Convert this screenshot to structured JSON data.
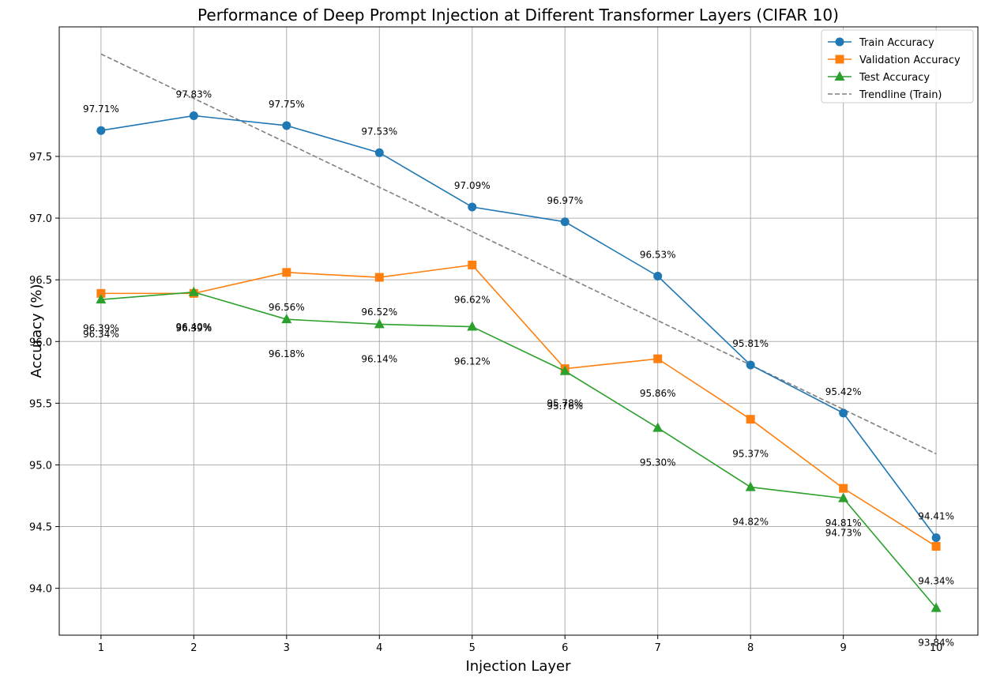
{
  "chart_data": {
    "type": "line",
    "title": "Performance of Deep Prompt Injection at Different Transformer Layers (CIFAR 10)",
    "xlabel": "Injection Layer",
    "ylabel": "Accuracy (%)",
    "x": [
      1,
      2,
      3,
      4,
      5,
      6,
      7,
      8,
      9,
      10
    ],
    "xlim": [
      0.55,
      10.45
    ],
    "ylim": [
      93.62,
      98.55
    ],
    "yticks": [
      94.0,
      94.5,
      95.0,
      95.5,
      96.0,
      96.5,
      97.0,
      97.5
    ],
    "ytick_labels": [
      "94.0",
      "94.5",
      "95.0",
      "95.5",
      "96.0",
      "96.5",
      "97.0",
      "97.5"
    ],
    "xtick_labels": [
      "1",
      "2",
      "3",
      "4",
      "5",
      "6",
      "7",
      "8",
      "9",
      "10"
    ],
    "grid": true,
    "legend_position": "top-right",
    "series": [
      {
        "name": "Train Accuracy",
        "color": "#1f77b4",
        "marker": "circle",
        "line_style": "solid",
        "values": [
          97.71,
          97.83,
          97.75,
          97.53,
          97.09,
          96.97,
          96.53,
          95.81,
          95.42,
          94.41
        ],
        "labels": [
          "97.71%",
          "97.83%",
          "97.75%",
          "97.53%",
          "97.09%",
          "96.97%",
          "96.53%",
          "95.81%",
          "95.42%",
          "94.41%"
        ]
      },
      {
        "name": "Validation Accuracy",
        "color": "#ff7f0e",
        "marker": "square",
        "line_style": "solid",
        "values": [
          96.39,
          96.39,
          96.56,
          96.52,
          96.62,
          95.78,
          95.86,
          95.37,
          94.81,
          94.34
        ],
        "labels": [
          "96.39%",
          "96.39%",
          "96.56%",
          "96.52%",
          "96.62%",
          "95.78%",
          "95.86%",
          "95.37%",
          "94.81%",
          "94.34%"
        ]
      },
      {
        "name": "Test Accuracy",
        "color": "#2ca02c",
        "marker": "triangle",
        "line_style": "solid",
        "values": [
          96.34,
          96.4,
          96.18,
          96.14,
          96.12,
          95.76,
          95.3,
          94.82,
          94.73,
          93.84
        ],
        "labels": [
          "96.34%",
          "96.40%",
          "96.18%",
          "96.14%",
          "96.12%",
          "95.76%",
          "95.30%",
          "94.82%",
          "94.73%",
          "93.84%"
        ]
      },
      {
        "name": "Trendline (Train)",
        "color": "#808080",
        "marker": "none",
        "line_style": "dashed",
        "values": [
          98.33,
          97.97,
          97.61,
          97.25,
          96.89,
          96.53,
          96.17,
          95.81,
          95.45,
          95.09
        ]
      }
    ]
  }
}
